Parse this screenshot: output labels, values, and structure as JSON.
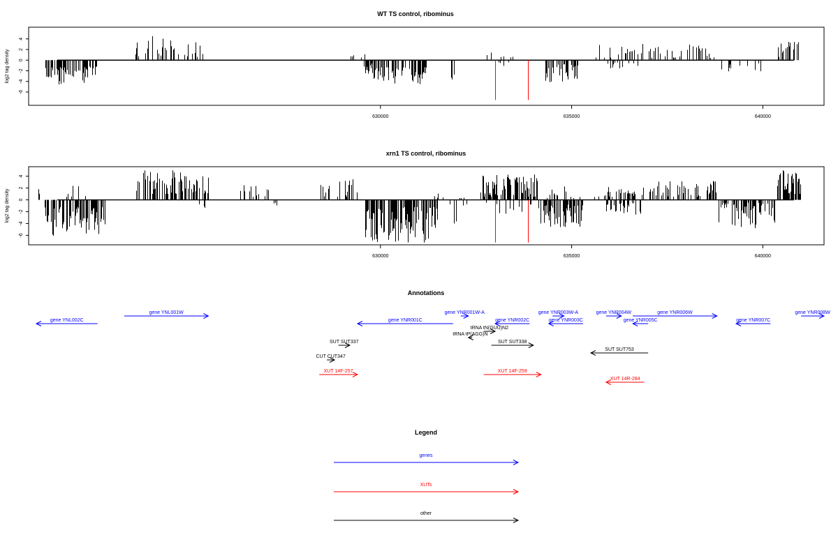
{
  "chart_data": [
    {
      "type": "bar",
      "title": "WT TS control, ribominus",
      "ylabel": "log2 tag density",
      "xlabel": "",
      "xlim": [
        620800,
        641600
      ],
      "ylim": [
        -8.5,
        6.2
      ],
      "yticks": [
        -6,
        -4,
        -2,
        0,
        2,
        4
      ],
      "xticks": [
        630000,
        635000,
        640000
      ],
      "grid": false,
      "series": [
        {
          "color": "#000000",
          "coverage": [
            {
              "from": 621200,
              "to": 622600,
              "sign": -1,
              "min": 1.2,
              "max": 4.6,
              "n": 60,
              "seed": 11
            },
            {
              "from": 623600,
              "to": 625400,
              "sign": 1,
              "min": 0.6,
              "max": 4.8,
              "n": 34,
              "seed": 12
            },
            {
              "from": 629200,
              "to": 629600,
              "sign": 1,
              "min": 0.4,
              "max": 2.2,
              "n": 5,
              "seed": 13
            },
            {
              "from": 629450,
              "to": 629900,
              "sign": -1,
              "min": 0.6,
              "max": 2.2,
              "n": 5,
              "seed": 14
            },
            {
              "from": 629600,
              "to": 631200,
              "sign": -1,
              "min": 1.2,
              "max": 4.6,
              "n": 70,
              "seed": 15
            },
            {
              "from": 631850,
              "to": 631950,
              "sign": -1,
              "min": 2.5,
              "max": 4.4,
              "n": 3,
              "seed": 16
            },
            {
              "from": 632600,
              "to": 633800,
              "sign": 1,
              "min": 0.4,
              "max": 1.8,
              "n": 6,
              "seed": 17
            },
            {
              "from": 633000,
              "to": 633900,
              "sign": -1,
              "min": 0.4,
              "max": 1.2,
              "n": 4,
              "seed": 18
            },
            {
              "from": 634300,
              "to": 635200,
              "sign": -1,
              "min": 0.6,
              "max": 4.2,
              "n": 40,
              "seed": 19
            },
            {
              "from": 635500,
              "to": 636900,
              "sign": 1,
              "min": 0.4,
              "max": 3.2,
              "n": 20,
              "seed": 20
            },
            {
              "from": 635900,
              "to": 636800,
              "sign": -1,
              "min": 0.4,
              "max": 1.8,
              "n": 12,
              "seed": 21
            },
            {
              "from": 637000,
              "to": 638800,
              "sign": 1,
              "min": 0.4,
              "max": 3.0,
              "n": 32,
              "seed": 22
            },
            {
              "from": 638800,
              "to": 640200,
              "sign": -1,
              "min": 0.4,
              "max": 2.4,
              "n": 14,
              "seed": 23
            },
            {
              "from": 640350,
              "to": 641000,
              "sign": 1,
              "min": 0.6,
              "max": 3.6,
              "n": 20,
              "seed": 24
            }
          ]
        }
      ],
      "highlights": [
        {
          "x": 633000,
          "y": -7.5,
          "color": "#ff0000"
        },
        {
          "x": 633850,
          "y": -7.5,
          "color": "#ff0000"
        }
      ]
    },
    {
      "type": "bar",
      "title": "xrn1 TS control, ribominus",
      "ylabel": "log2 tag density",
      "xlabel": "",
      "xlim": [
        620800,
        641600
      ],
      "ylim": [
        -7.6,
        5.6
      ],
      "yticks": [
        -6,
        -4,
        -2,
        0,
        2,
        4
      ],
      "xticks": [
        630000,
        635000,
        640000
      ],
      "grid": false,
      "series": [
        {
          "color": "#000000",
          "coverage": [
            {
              "from": 621050,
              "to": 621150,
              "sign": 1,
              "min": 1.0,
              "max": 2.1,
              "n": 2,
              "seed": 31
            },
            {
              "from": 621200,
              "to": 622800,
              "sign": -1,
              "min": 1.2,
              "max": 6.2,
              "n": 90,
              "seed": 32
            },
            {
              "from": 621550,
              "to": 622500,
              "sign": 1,
              "min": 0.2,
              "max": 2.8,
              "n": 6,
              "seed": 33
            },
            {
              "from": 623600,
              "to": 625500,
              "sign": 1,
              "min": 1.0,
              "max": 5.0,
              "n": 80,
              "seed": 34
            },
            {
              "from": 625200,
              "to": 625450,
              "sign": -1,
              "min": 0.5,
              "max": 1.4,
              "n": 3,
              "seed": 35
            },
            {
              "from": 626200,
              "to": 627200,
              "sign": 1,
              "min": 0.5,
              "max": 3.0,
              "n": 15,
              "seed": 36
            },
            {
              "from": 627200,
              "to": 627550,
              "sign": -1,
              "min": 0.5,
              "max": 1.4,
              "n": 3,
              "seed": 37
            },
            {
              "from": 628400,
              "to": 629400,
              "sign": 1,
              "min": 0.5,
              "max": 3.6,
              "n": 20,
              "seed": 38
            },
            {
              "from": 629600,
              "to": 631500,
              "sign": -1,
              "min": 1.2,
              "max": 7.2,
              "n": 120,
              "seed": 39
            },
            {
              "from": 631400,
              "to": 631800,
              "sign": 1,
              "min": 0.3,
              "max": 1.2,
              "n": 4,
              "seed": 40
            },
            {
              "from": 631800,
              "to": 632300,
              "sign": -1,
              "min": 0.5,
              "max": 4.0,
              "n": 5,
              "seed": 41
            },
            {
              "from": 632000,
              "to": 632300,
              "sign": 1,
              "min": 0.3,
              "max": 1.0,
              "n": 3,
              "seed": 42
            },
            {
              "from": 632600,
              "to": 634100,
              "sign": 1,
              "min": 0.5,
              "max": 4.4,
              "n": 90,
              "seed": 43
            },
            {
              "from": 632700,
              "to": 634000,
              "sign": -1,
              "min": 0.5,
              "max": 2.4,
              "n": 12,
              "seed": 44
            },
            {
              "from": 634100,
              "to": 635300,
              "sign": -1,
              "min": 0.8,
              "max": 4.6,
              "n": 70,
              "seed": 45
            },
            {
              "from": 634300,
              "to": 635300,
              "sign": 1,
              "min": 0.3,
              "max": 2.4,
              "n": 12,
              "seed": 46
            },
            {
              "from": 635600,
              "to": 636000,
              "sign": 1,
              "min": 0.3,
              "max": 1.0,
              "n": 4,
              "seed": 47
            },
            {
              "from": 635900,
              "to": 636900,
              "sign": 1,
              "min": 0.5,
              "max": 2.4,
              "n": 25,
              "seed": 48
            },
            {
              "from": 635900,
              "to": 636900,
              "sign": -1,
              "min": 0.5,
              "max": 2.8,
              "n": 30,
              "seed": 49
            },
            {
              "from": 637000,
              "to": 638800,
              "sign": 1,
              "min": 0.5,
              "max": 3.2,
              "n": 60,
              "seed": 50
            },
            {
              "from": 638800,
              "to": 640300,
              "sign": -1,
              "min": 0.5,
              "max": 4.8,
              "n": 60,
              "seed": 51
            },
            {
              "from": 640350,
              "to": 641000,
              "sign": 1,
              "min": 1.0,
              "max": 5.0,
              "n": 40,
              "seed": 52
            }
          ]
        }
      ],
      "highlights": [
        {
          "x": 633000,
          "y": -7.2,
          "color": "#ff0000"
        },
        {
          "x": 633850,
          "y": -7.2,
          "color": "#ff0000"
        }
      ]
    }
  ],
  "annotations": {
    "title": "Annotations",
    "items": [
      {
        "label": "gene YNL002C",
        "from": 622600,
        "to": 621000,
        "row": 1,
        "color": "#0000ff"
      },
      {
        "label": "gene YNL001W",
        "from": 623300,
        "to": 625500,
        "row": 0,
        "color": "#0000ff"
      },
      {
        "label": "gene YNR001C",
        "from": 631900,
        "to": 629400,
        "row": 1,
        "color": "#0000ff"
      },
      {
        "label": "gene YNR001W-A",
        "from": 632100,
        "to": 632300,
        "row": 0,
        "color": "#0000ff"
      },
      {
        "label": "gene YNR002C",
        "from": 633900,
        "to": 633000,
        "row": 1,
        "color": "#0000ff"
      },
      {
        "label": "gene YNR003W-A",
        "from": 634500,
        "to": 634800,
        "row": 0,
        "color": "#0000ff"
      },
      {
        "label": "gene YNR003C",
        "from": 635300,
        "to": 634400,
        "row": 1,
        "color": "#0000ff"
      },
      {
        "label": "gene YNR004W",
        "from": 635900,
        "to": 636300,
        "row": 0,
        "color": "#0000ff"
      },
      {
        "label": "gene YNR005C",
        "from": 637000,
        "to": 636600,
        "row": 1,
        "color": "#0000ff"
      },
      {
        "label": "gene YNR006W",
        "from": 636600,
        "to": 638800,
        "row": 0,
        "color": "#0000ff"
      },
      {
        "label": "gene YNR007C",
        "from": 640200,
        "to": 639300,
        "row": 1,
        "color": "#0000ff"
      },
      {
        "label": "gene YNR008W",
        "from": 641000,
        "to": 641600,
        "row": 0,
        "color": "#0000ff"
      },
      {
        "label": "tRNA tN(GUU)N2",
        "from": 632700,
        "to": 633000,
        "row": 2,
        "color": "#000000"
      },
      {
        "label": "tRNA tP(AGG)N",
        "from": 632400,
        "to": 632300,
        "row": 3,
        "color": "#000000"
      },
      {
        "label": "SUT SUT337",
        "from": 628900,
        "to": 629200,
        "row": 4,
        "color": "#000000"
      },
      {
        "label": "SUT SUT338",
        "from": 632900,
        "to": 634000,
        "row": 4,
        "color": "#000000"
      },
      {
        "label": "SUT SUT753",
        "from": 637000,
        "to": 635500,
        "row": 5,
        "color": "#000000"
      },
      {
        "label": "CUT CUT347",
        "from": 628600,
        "to": 628800,
        "row": 6,
        "color": "#000000"
      },
      {
        "label": "XUT 14F-257",
        "from": 628400,
        "to": 629400,
        "row": 7,
        "color": "#ff0000"
      },
      {
        "label": "XUT 14F-259",
        "from": 632700,
        "to": 634200,
        "row": 7,
        "color": "#ff0000"
      },
      {
        "label": "XUT 14R-284",
        "from": 636900,
        "to": 635900,
        "row": 8,
        "color": "#ff0000"
      }
    ]
  },
  "legend": {
    "title": "Legend",
    "entries": [
      {
        "label": "genes",
        "color": "#0000ff"
      },
      {
        "label": "XUTs",
        "color": "#ff0000"
      },
      {
        "label": "other",
        "color": "#000000"
      }
    ]
  }
}
